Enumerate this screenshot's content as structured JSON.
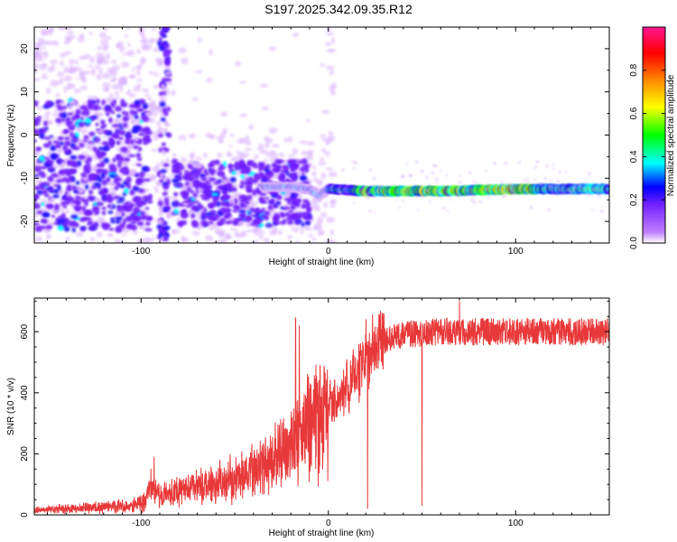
{
  "figure": {
    "title": "S197.2025.342.09.35.R12"
  },
  "chart_data": [
    {
      "type": "heatmap",
      "xlabel": "Height of straight line (km)",
      "ylabel": "Frequency (Hz)",
      "xlim": [
        -157,
        150
      ],
      "ylim": [
        -25,
        25
      ],
      "xticks": [
        -100,
        0,
        100
      ],
      "yticks": [
        -20,
        -10,
        0,
        10,
        20
      ],
      "grid": false,
      "colorbar": {
        "label": "Normalized spectral amplitude",
        "range": [
          0,
          1
        ],
        "ticks": [
          0.0,
          0.2,
          0.4,
          0.6,
          0.8
        ],
        "tick_labels": [
          "0.0",
          "0.2",
          "0.4",
          "0.6",
          "0.8"
        ],
        "colormap": [
          "#ffffff",
          "#a020f0",
          "#0000ff",
          "#00ffff",
          "#00ff00",
          "#ffff00",
          "#ff8c00",
          "#ff0000",
          "#ff1493"
        ]
      },
      "ridge": [
        {
          "x": -30,
          "y": -12
        },
        {
          "x": -20,
          "y": -12
        },
        {
          "x": -10,
          "y": -12.5
        },
        {
          "x": -5,
          "y": -14
        },
        {
          "x": 0,
          "y": -12.5
        },
        {
          "x": 20,
          "y": -13
        },
        {
          "x": 60,
          "y": -13
        },
        {
          "x": 100,
          "y": -12.5
        },
        {
          "x": 150,
          "y": -12.5
        }
      ]
    },
    {
      "type": "line",
      "xlabel": "Height of straight line (km)",
      "ylabel": "SNR (10 * v/v)",
      "xlim": [
        -157,
        150
      ],
      "ylim": [
        0,
        710
      ],
      "xticks": [
        -100,
        0,
        100
      ],
      "yticks": [
        0,
        200,
        400,
        600
      ],
      "grid": false,
      "color": "#e8393a",
      "series": [
        {
          "x": [
            -157,
            -140,
            -120,
            -105,
            -98,
            -95,
            -90,
            -80,
            -70,
            -60,
            -50,
            -40,
            -30,
            -25,
            -20,
            -15,
            -10,
            -5,
            0,
            10,
            15,
            20,
            30,
            40,
            60,
            80,
            100,
            120,
            150
          ],
          "values": [
            15,
            20,
            25,
            30,
            45,
            100,
            60,
            80,
            90,
            100,
            120,
            140,
            170,
            190,
            220,
            270,
            300,
            330,
            360,
            420,
            470,
            520,
            570,
            590,
            600,
            600,
            600,
            600,
            600
          ],
          "spikes": [
            {
              "x": -93,
              "y": 190
            },
            {
              "x": -17.5,
              "y": 645
            },
            {
              "x": -15.5,
              "y": 620
            },
            {
              "x": 21,
              "y": 20
            },
            {
              "x": 50,
              "y": 30
            },
            {
              "x": 70,
              "y": 700
            }
          ]
        }
      ]
    }
  ]
}
